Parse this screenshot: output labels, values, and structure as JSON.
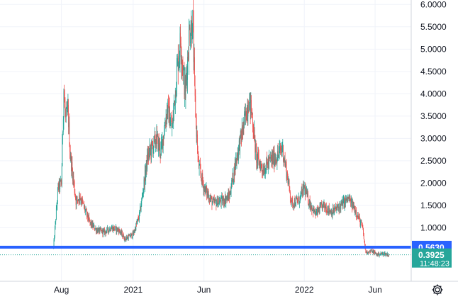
{
  "chart_data": {
    "type": "candlestick",
    "y_axis": {
      "ticks": [
        "1.0000",
        "1.5000",
        "2.0000",
        "2.5000",
        "3.0000",
        "3.5000",
        "4.0000",
        "4.5000",
        "5.0000",
        "5.5000",
        "6.0000"
      ],
      "tick_values": [
        1.0,
        1.5,
        2.0,
        2.5,
        3.0,
        3.5,
        4.0,
        4.5,
        5.0,
        5.5,
        6.0
      ],
      "ylim": [
        -0.2,
        6.1
      ],
      "position": "right"
    },
    "x_axis": {
      "ticks": [
        "Aug",
        "2021",
        "Jun",
        "2022",
        "Jun"
      ],
      "tick_dates": [
        "2020-08-01",
        "2021-01-01",
        "2021-06-01",
        "2022-01-01",
        "2022-06-01"
      ],
      "xlim": [
        "2020-03-23",
        "2022-08-17"
      ]
    },
    "grid": true,
    "price_line": {
      "price": 0.563,
      "label": "0.5630",
      "color": "#2962ff"
    },
    "last_price": {
      "price": 0.3925,
      "label": "0.3925",
      "countdown": "11:48:23",
      "color": "#26a69a"
    },
    "colors": {
      "up": "#26a69a",
      "down": "#ef5350"
    },
    "anchors": [
      [
        "2020-07-15",
        0.55
      ],
      [
        "2020-07-25",
        1.9
      ],
      [
        "2020-08-01",
        2.0
      ],
      [
        "2020-08-06",
        4.1
      ],
      [
        "2020-08-10",
        3.4
      ],
      [
        "2020-08-15",
        3.6
      ],
      [
        "2020-08-20",
        2.6
      ],
      [
        "2020-08-25",
        2.2
      ],
      [
        "2020-09-01",
        1.6
      ],
      [
        "2020-09-10",
        1.7
      ],
      [
        "2020-09-20",
        1.4
      ],
      [
        "2020-10-01",
        1.1
      ],
      [
        "2020-10-15",
        0.95
      ],
      [
        "2020-11-01",
        0.9
      ],
      [
        "2020-11-15",
        1.0
      ],
      [
        "2020-12-01",
        0.95
      ],
      [
        "2020-12-15",
        0.75
      ],
      [
        "2021-01-01",
        0.85
      ],
      [
        "2021-01-15",
        1.3
      ],
      [
        "2021-02-01",
        2.6
      ],
      [
        "2021-02-20",
        3.0
      ],
      [
        "2021-03-01",
        2.7
      ],
      [
        "2021-03-15",
        3.7
      ],
      [
        "2021-03-25",
        3.2
      ],
      [
        "2021-04-05",
        4.6
      ],
      [
        "2021-04-12",
        5.2
      ],
      [
        "2021-04-22",
        4.0
      ],
      [
        "2021-05-01",
        5.4
      ],
      [
        "2021-05-08",
        5.6
      ],
      [
        "2021-05-13",
        3.8
      ],
      [
        "2021-05-20",
        2.4
      ],
      [
        "2021-06-01",
        1.9
      ],
      [
        "2021-06-20",
        1.55
      ],
      [
        "2021-07-10",
        1.6
      ],
      [
        "2021-07-25",
        1.7
      ],
      [
        "2021-08-10",
        2.6
      ],
      [
        "2021-08-25",
        3.3
      ],
      [
        "2021-09-05",
        3.9
      ],
      [
        "2021-09-12",
        3.5
      ],
      [
        "2021-09-20",
        2.6
      ],
      [
        "2021-10-05",
        2.3
      ],
      [
        "2021-10-20",
        2.5
      ],
      [
        "2021-11-05",
        2.6
      ],
      [
        "2021-11-15",
        2.8
      ],
      [
        "2021-11-25",
        2.2
      ],
      [
        "2021-12-05",
        1.55
      ],
      [
        "2021-12-20",
        1.6
      ],
      [
        "2022-01-01",
        1.9
      ],
      [
        "2022-01-10",
        1.6
      ],
      [
        "2022-01-25",
        1.3
      ],
      [
        "2022-02-10",
        1.5
      ],
      [
        "2022-03-01",
        1.35
      ],
      [
        "2022-03-20",
        1.5
      ],
      [
        "2022-04-05",
        1.65
      ],
      [
        "2022-04-20",
        1.4
      ],
      [
        "2022-05-05",
        1.0
      ],
      [
        "2022-05-12",
        0.45
      ],
      [
        "2022-05-25",
        0.48
      ],
      [
        "2022-06-05",
        0.4
      ],
      [
        "2022-06-20",
        0.42
      ],
      [
        "2022-07-01",
        0.3925
      ]
    ]
  },
  "settings": {
    "icon": "gear-icon"
  }
}
